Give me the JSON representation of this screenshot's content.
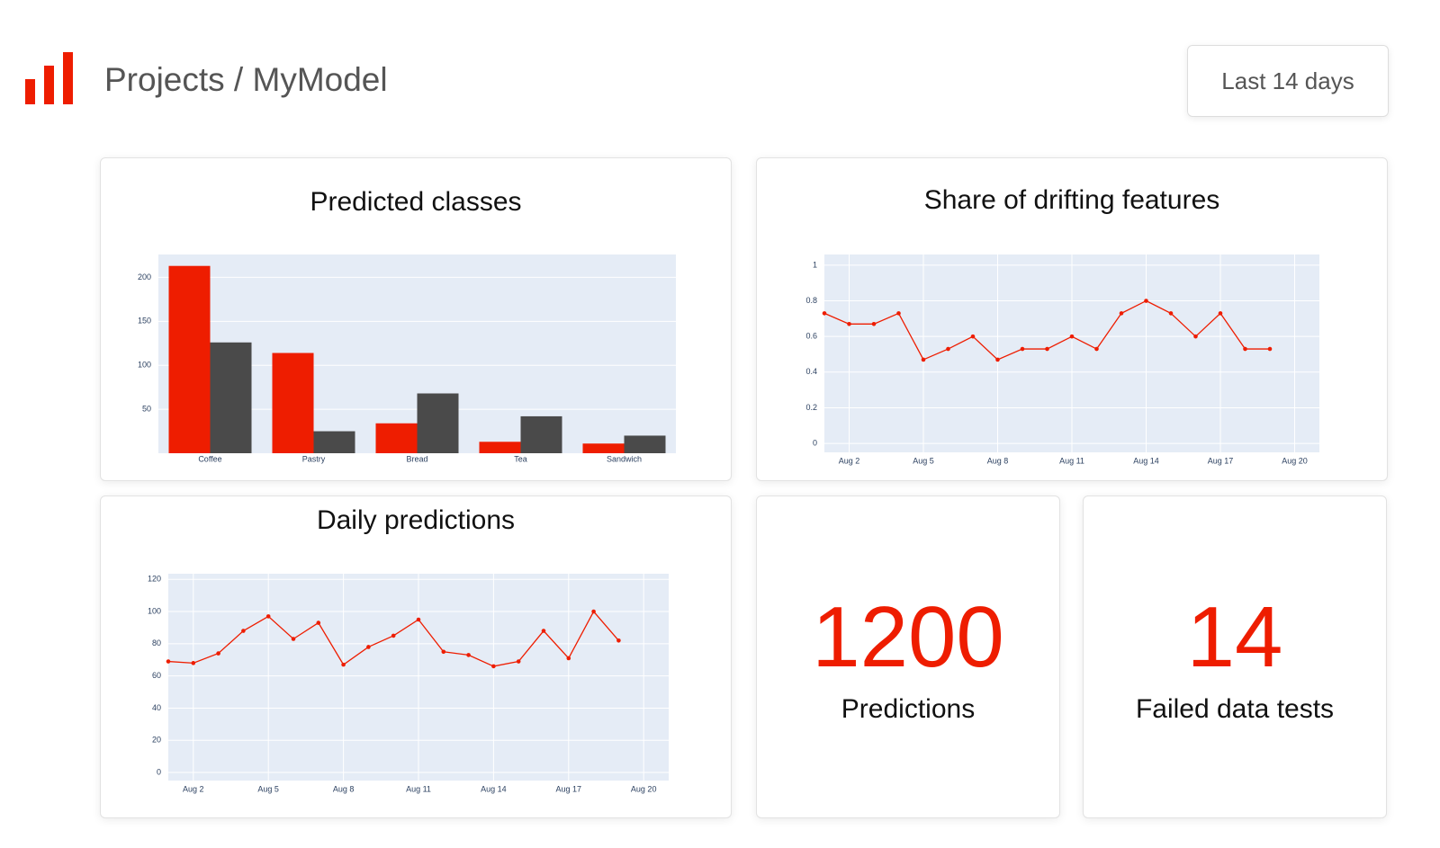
{
  "header": {
    "title": "Projects / MyModel",
    "period_button": "Last 14 days"
  },
  "chart_data": [
    {
      "type": "bar",
      "title": "Predicted classes",
      "categories": [
        "Coffee",
        "Pastry",
        "Bread",
        "Tea",
        "Sandwich"
      ],
      "series": [
        {
          "color": "#ee1d00",
          "values": [
            213,
            114,
            34,
            13,
            11
          ]
        },
        {
          "color": "#4a4a4a",
          "values": [
            126,
            25,
            68,
            42,
            20
          ]
        }
      ],
      "ylim": [
        0,
        226
      ],
      "yticks": [
        50,
        100,
        150,
        200
      ],
      "grid": true
    },
    {
      "type": "line",
      "title": "Share of drifting features",
      "x": [
        "Aug 1",
        "Aug 2",
        "Aug 3",
        "Aug 4",
        "Aug 5",
        "Aug 6",
        "Aug 7",
        "Aug 8",
        "Aug 9",
        "Aug 10",
        "Aug 11",
        "Aug 12",
        "Aug 13",
        "Aug 14",
        "Aug 15",
        "Aug 16",
        "Aug 17",
        "Aug 18",
        "Aug 19"
      ],
      "series": [
        {
          "color": "#ee1d00",
          "values": [
            0.73,
            0.67,
            0.67,
            0.73,
            0.47,
            0.53,
            0.6,
            0.47,
            0.53,
            0.53,
            0.6,
            0.53,
            0.73,
            0.8,
            0.73,
            0.6,
            0.73,
            0.53,
            0.53
          ]
        }
      ],
      "xlim": [
        "Aug 1",
        "Aug 21"
      ],
      "xticks": [
        "Aug 2",
        "Aug 5",
        "Aug 8",
        "Aug 11",
        "Aug 14",
        "Aug 17",
        "Aug 20"
      ],
      "ylim": [
        -0.05,
        1.06
      ],
      "yticks": [
        0,
        0.2,
        0.4,
        0.6,
        0.8,
        1
      ],
      "grid": true
    },
    {
      "type": "line",
      "title": "Daily predictions",
      "x": [
        "Aug 1",
        "Aug 2",
        "Aug 3",
        "Aug 4",
        "Aug 5",
        "Aug 6",
        "Aug 7",
        "Aug 8",
        "Aug 9",
        "Aug 10",
        "Aug 11",
        "Aug 12",
        "Aug 13",
        "Aug 14",
        "Aug 15",
        "Aug 16",
        "Aug 17",
        "Aug 18",
        "Aug 19"
      ],
      "series": [
        {
          "color": "#ee1d00",
          "values": [
            69,
            68,
            74,
            88,
            97,
            83,
            93,
            67,
            78,
            85,
            95,
            75,
            73,
            66,
            69,
            88,
            71,
            100,
            82
          ]
        }
      ],
      "xlim": [
        "Aug 1",
        "Aug 21"
      ],
      "xticks": [
        "Aug 2",
        "Aug 5",
        "Aug 8",
        "Aug 11",
        "Aug 14",
        "Aug 17",
        "Aug 20"
      ],
      "ylim": [
        -5,
        123.5
      ],
      "yticks": [
        0,
        20,
        40,
        60,
        80,
        100,
        120
      ],
      "grid": true
    }
  ],
  "kpis": [
    {
      "value": 1200,
      "label": "Predictions"
    },
    {
      "value": 14,
      "label": "Failed data tests"
    }
  ]
}
